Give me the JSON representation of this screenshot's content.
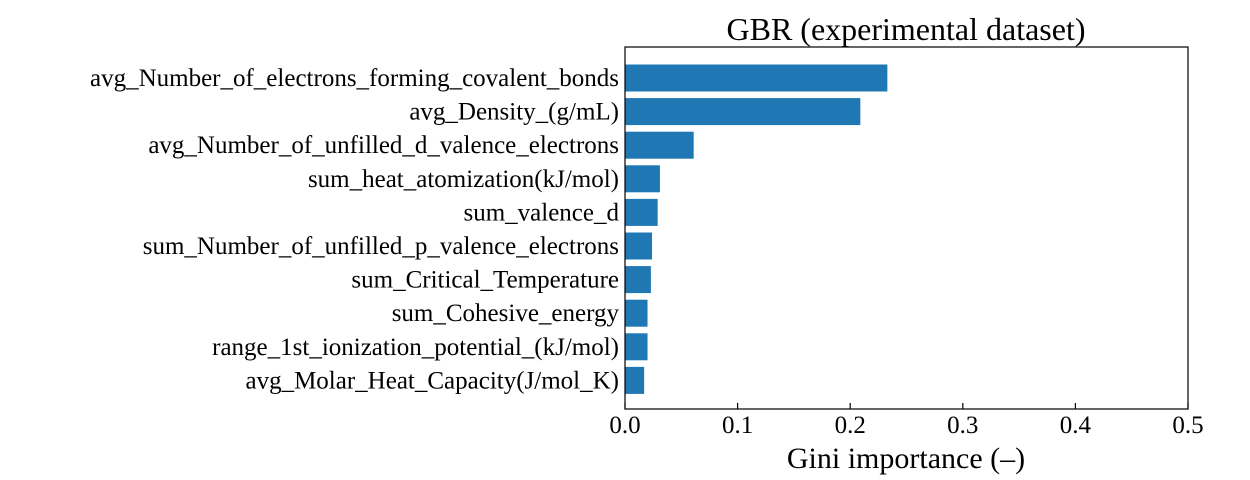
{
  "chart_data": {
    "type": "bar",
    "orientation": "horizontal",
    "title": "GBR (experimental dataset)",
    "xlabel": "Gini importance (–)",
    "ylabel": "",
    "xlim": [
      0,
      0.5
    ],
    "xticks": [
      "0.0",
      "0.1",
      "0.2",
      "0.3",
      "0.4",
      "0.5"
    ],
    "grid": false,
    "bar_color": "#1f77b4",
    "categories": [
      "avg_Number_of_electrons_forming_covalent_bonds",
      "avg_Density_(g/mL)",
      "avg_Number_of_unfilled_d_valence_electrons",
      "sum_heat_atomization(kJ/mol)",
      "sum_valence_d",
      "sum_Number_of_unfilled_p_valence_electrons",
      "sum_Critical_Temperature",
      "sum_Cohesive_energy",
      "range_1st_ionization_potential_(kJ/mol)",
      "avg_Molar_Heat_Capacity(J/mol_K)"
    ],
    "values": [
      0.233,
      0.209,
      0.061,
      0.031,
      0.029,
      0.024,
      0.023,
      0.02,
      0.02,
      0.017
    ]
  }
}
